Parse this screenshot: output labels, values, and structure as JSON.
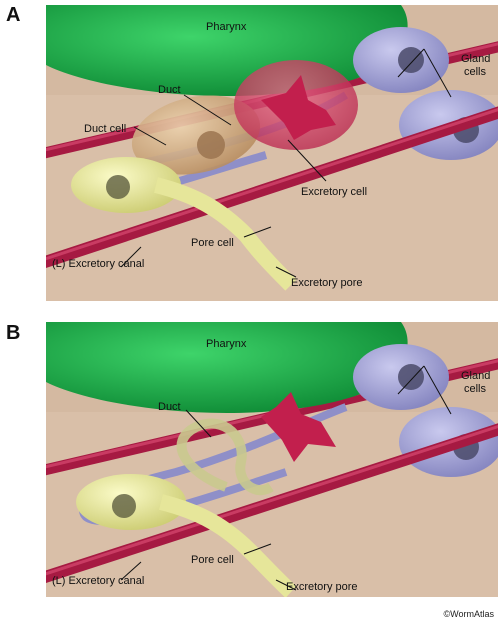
{
  "panels": [
    {
      "letter": "A",
      "labels": {
        "pharynx": "Pharynx",
        "duct_cell": "Duct cell",
        "duct": "Duct",
        "gland_cells_1": "Gland",
        "gland_cells_2": "cells",
        "excretory_cell": "Excretory cell",
        "pore_cell": "Pore cell",
        "excretory_canal": "(L) Excretory canal",
        "excretory_pore": "Excretory pore"
      }
    },
    {
      "letter": "B",
      "labels": {
        "pharynx": "Pharynx",
        "duct": "Duct",
        "gland_cells_1": "Gland",
        "gland_cells_2": "cells",
        "pore_cell": "Pore cell",
        "excretory_canal": "(L) Excretory canal",
        "excretory_pore": "Excretory pore"
      }
    }
  ],
  "credit": "©WormAtlas",
  "colors": {
    "background_tissue": "#d9bfa8",
    "pharynx": "#1fae4a",
    "gland": "#a9a9d6",
    "canal_red": "#c0234e",
    "canal_blue": "#8f8fc8",
    "pore_yellow": "#e6e69a",
    "excretory_cell": "#d8436a",
    "duct_cell": "#d2ae86"
  }
}
